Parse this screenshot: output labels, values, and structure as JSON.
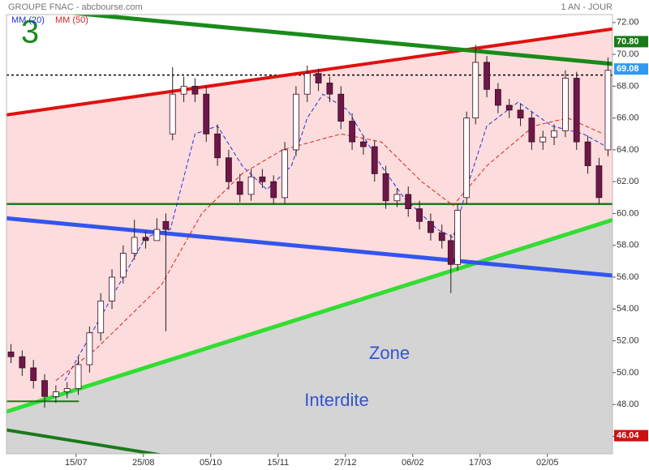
{
  "chart_data": {
    "type": "candlestick",
    "title": "GROUPE FNAC - abcbourse.com",
    "period": "1 AN - JOUR",
    "marker": "3",
    "annotations": [
      "Zone",
      "Interdite"
    ],
    "xlim": [
      0,
      270
    ],
    "ylim": [
      44.9,
      72.5
    ],
    "xticks": [
      {
        "value": 31,
        "label": "15/07"
      },
      {
        "value": 61,
        "label": "25/08"
      },
      {
        "value": 91,
        "label": "05/10"
      },
      {
        "value": 121,
        "label": "15/11"
      },
      {
        "value": 151,
        "label": "27/12"
      },
      {
        "value": 181,
        "label": "06/02"
      },
      {
        "value": 211,
        "label": "17/03"
      },
      {
        "value": 241,
        "label": "02/05"
      }
    ],
    "yticks": [
      {
        "value": 46,
        "label": "46.00"
      },
      {
        "value": 48,
        "label": "48.00"
      },
      {
        "value": 50,
        "label": "50.00"
      },
      {
        "value": 52,
        "label": "52.00"
      },
      {
        "value": 54,
        "label": "54.00"
      },
      {
        "value": 56,
        "label": "56.00"
      },
      {
        "value": 58,
        "label": "58.00"
      },
      {
        "value": 60,
        "label": "60.00"
      },
      {
        "value": 62,
        "label": "62.00"
      },
      {
        "value": 64,
        "label": "64.00"
      },
      {
        "value": 66,
        "label": "66.00"
      },
      {
        "value": 68,
        "label": "68.00"
      },
      {
        "value": 70,
        "label": "70.00"
      },
      {
        "value": 72,
        "label": "72.00"
      }
    ],
    "up_color": "#ffffff",
    "down_color": "#6e1748",
    "x": [
      2,
      7,
      12,
      17,
      22,
      27,
      32,
      37,
      42,
      47,
      52,
      57,
      62,
      67,
      71,
      74,
      79,
      84,
      89,
      94,
      99,
      104,
      109,
      114,
      119,
      124,
      129,
      134,
      139,
      144,
      149,
      154,
      159,
      164,
      169,
      174,
      179,
      184,
      189,
      194,
      198,
      201,
      205,
      209,
      214,
      219,
      224,
      229,
      234,
      239,
      244,
      249,
      254,
      259,
      264,
      268
    ],
    "open": [
      51.3,
      51,
      50.3,
      49.5,
      48.5,
      48.8,
      49,
      50.5,
      52.5,
      54.5,
      56,
      57.5,
      58.5,
      58.3,
      59.5,
      65,
      67.5,
      68,
      67.5,
      65,
      63.5,
      62,
      61.2,
      62.3,
      62,
      61,
      64,
      67.5,
      68.8,
      68.2,
      67.5,
      65.8,
      64.5,
      64.2,
      62.5,
      60.8,
      61.2,
      60.3,
      59.5,
      58.8,
      58.3,
      56.8,
      61,
      66,
      69.5,
      67.8,
      66.8,
      66.5,
      66,
      64.5,
      64.8,
      65.2,
      68.5,
      64.5,
      63,
      64
    ],
    "high": [
      51.8,
      51.4,
      50.8,
      49.9,
      49.2,
      49.4,
      51,
      52.9,
      55,
      56.5,
      58,
      59.6,
      58.9,
      59.7,
      60,
      69.2,
      68.6,
      68.5,
      68,
      65.6,
      64,
      62.5,
      62.8,
      62.8,
      62.4,
      64.5,
      68,
      69.3,
      69.1,
      68.6,
      68,
      66.3,
      64.9,
      64.6,
      63,
      61.6,
      61.7,
      60.8,
      60,
      59.3,
      58.7,
      60.6,
      66.4,
      70.6,
      69.9,
      68.2,
      67.2,
      66.9,
      66.4,
      65.2,
      65.6,
      69,
      68.9,
      64.9,
      63.5,
      69.8
    ],
    "low": [
      50.6,
      49.8,
      49,
      47.8,
      48.1,
      48.4,
      48.6,
      50,
      52,
      54,
      55.6,
      57.1,
      57.8,
      58.5,
      52.6,
      64.6,
      67,
      67,
      64.5,
      63,
      61.5,
      60.7,
      60.8,
      61.6,
      60.6,
      60.6,
      63.6,
      67,
      67.7,
      67,
      65.3,
      64,
      63.7,
      62,
      60.3,
      60.4,
      59.8,
      59,
      58.3,
      57.8,
      55,
      56.4,
      60.6,
      65.6,
      67.3,
      66.3,
      66,
      65.5,
      64,
      64,
      64.3,
      64.8,
      64,
      62.5,
      60.6,
      63.6
    ],
    "close": [
      51,
      50.3,
      49.5,
      48.5,
      48.8,
      49,
      50.5,
      52.5,
      54.5,
      56,
      57.5,
      58.5,
      58.3,
      59,
      59,
      67.5,
      68,
      67.5,
      65,
      63.5,
      62,
      61.2,
      62.3,
      62,
      61,
      64,
      67.5,
      68.8,
      68.2,
      67.5,
      65.8,
      64.5,
      64.2,
      62.5,
      60.8,
      61.2,
      60.3,
      59.5,
      58.8,
      58.3,
      56.8,
      60.2,
      66,
      69.5,
      67.8,
      66.8,
      66.5,
      66,
      64.5,
      64.8,
      65.2,
      68.5,
      64.5,
      63,
      61,
      69
    ],
    "series": [
      {
        "name": "MM (20)",
        "color": "#2233dd",
        "x": [
          26,
          44,
          62,
          73,
          84,
          94,
          105,
          116,
          127,
          134,
          141,
          152,
          167,
          177,
          192,
          199,
          206,
          214,
          228,
          243,
          257,
          266
        ],
        "values": [
          49.5,
          54,
          58.5,
          59,
          65,
          65.5,
          63,
          61.5,
          63,
          66,
          67.5,
          66.5,
          63,
          61,
          59,
          58.5,
          62,
          65.5,
          67,
          65.5,
          65,
          64.3
        ]
      },
      {
        "name": "MM (50)",
        "color": "#dd2222",
        "x": [
          22,
          40,
          69,
          87,
          105,
          123,
          149,
          167,
          185,
          199,
          214,
          235,
          250,
          266
        ],
        "values": [
          49.5,
          51.5,
          55.5,
          60,
          62.5,
          64,
          65,
          64.5,
          62,
          60.5,
          63,
          65.5,
          66,
          65
        ]
      }
    ],
    "trendlines": [
      {
        "color": "#e01010",
        "width": 4,
        "x": [
          0,
          270
        ],
        "values": [
          66.2,
          71.6
        ]
      },
      {
        "color": "#1a8a1a",
        "width": 5,
        "x": [
          22,
          270
        ],
        "values": [
          72.7,
          69.4
        ]
      },
      {
        "color": "#1a7a1a",
        "width": 4,
        "x": [
          0,
          105
        ],
        "values": [
          46.4,
          44.0
        ]
      },
      {
        "color": "#33dd33",
        "width": 5,
        "x": [
          0,
          270
        ],
        "values": [
          47.55,
          59.6
        ]
      },
      {
        "color": "#3355ee",
        "width": 5,
        "x": [
          0,
          270
        ],
        "values": [
          59.7,
          56.1
        ]
      },
      {
        "color": "#1a7a1a",
        "width": 2,
        "x": [
          0,
          32
        ],
        "values": [
          48.2,
          48.2
        ]
      }
    ],
    "hlines": [
      {
        "value": 68.7,
        "color": "#000000",
        "dash": true
      },
      {
        "value": 60.6,
        "color": "#1a7a1a",
        "dash": false
      }
    ],
    "price_labels": [
      {
        "value": 70.8,
        "label": "70.80",
        "color": "#1a7a1a"
      },
      {
        "value": 69.08,
        "color": "#3399ee"
      },
      {
        "value": 46.04,
        "color": "#cc1111"
      }
    ]
  }
}
